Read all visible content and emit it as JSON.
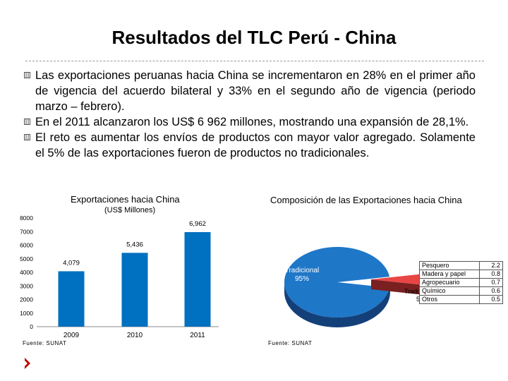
{
  "slide": {
    "title": "Resultados del TLC Perú - China",
    "bullets": [
      "Las exportaciones peruanas hacia China se incrementaron en 28% en el primer año de vigencia del acuerdo bilateral y 33% en el segundo año de vigencia (periodo marzo – febrero).",
      "En el 2011 alcanzaron los US$ 6 962 millones, mostrando una expansión de 28,1%.",
      "El reto es aumentar los envíos de productos con mayor valor agregado. Solamente el 5% de las exportaciones fueron de productos no tradicionales."
    ]
  },
  "chart_data": [
    {
      "type": "bar",
      "title": "Exportaciones hacia China",
      "subtitle": "(US$ Millones)",
      "categories": [
        "2009",
        "2010",
        "2011"
      ],
      "values": [
        4079,
        5436,
        6962
      ],
      "data_labels": [
        "4,079",
        "5,436",
        "6,962"
      ],
      "yticks": [
        "0",
        "1000",
        "2000",
        "3000",
        "4000",
        "5000",
        "6000",
        "7000",
        "8000"
      ],
      "ylim": [
        0,
        8000
      ],
      "bar_color": "#0070c0",
      "source": "Fuente: SUNAT"
    },
    {
      "type": "pie",
      "title": "Composición de las Exportaciones hacia China",
      "slices": [
        {
          "name": "Tradicional",
          "value": 95,
          "label": "Tradicional",
          "pct_label": "95%",
          "color": "#1f77c8"
        },
        {
          "name": "No Tradicional",
          "value": 5,
          "label_fragments": [
            "N",
            "Tradi",
            "5"
          ],
          "color": "#c0504d"
        }
      ],
      "detail_table": [
        {
          "name": "Pesquero",
          "value": "2.2"
        },
        {
          "name": "Madera y papel",
          "value": "0.8"
        },
        {
          "name": "Agropecuario",
          "value": "0.7"
        },
        {
          "name": "Químico",
          "value": "0.6"
        },
        {
          "name": "Otros",
          "value": "0.5"
        }
      ],
      "source": "Fuente: SUNAT"
    }
  ]
}
